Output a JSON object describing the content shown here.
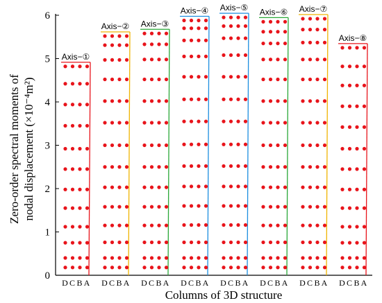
{
  "chart_data": {
    "type": "scatter",
    "xlabel": "Columns of  3D structure",
    "ylabel_line1": "Zero-order spectral moments of",
    "ylabel_line2": "nodal displacement (×10⁻⁴m²)",
    "ylim": [
      0,
      6
    ],
    "yticks": [
      "0",
      "1",
      "2",
      "3",
      "4",
      "5",
      "6"
    ],
    "category_letters": "DCBA",
    "marker_color": "#e8141b",
    "groups": [
      {
        "label": "Axis−①",
        "color": "#e8141b",
        "columns": [
          "D",
          "C",
          "B",
          "A"
        ],
        "values": [
          0.18,
          0.4,
          0.75,
          1.12,
          1.55,
          1.98,
          2.45,
          2.92,
          3.45,
          3.94,
          4.42,
          4.82
        ]
      },
      {
        "label": "Axis−②",
        "color": "#f0b400",
        "columns": [
          "D",
          "C",
          "B",
          "A"
        ],
        "values": [
          0.18,
          0.4,
          0.76,
          1.15,
          1.58,
          2.03,
          2.5,
          3.0,
          3.52,
          4.02,
          4.52,
          4.97,
          5.31,
          5.52
        ]
      },
      {
        "label": "Axis−③",
        "color": "#2aa838",
        "columns": [
          "D",
          "C",
          "B",
          "A"
        ],
        "values": [
          0.18,
          0.4,
          0.76,
          1.15,
          1.58,
          2.03,
          2.5,
          3.0,
          3.52,
          4.02,
          4.52,
          4.98,
          5.33,
          5.58
        ]
      },
      {
        "label": "Axis−④",
        "color": "#1c8ee0",
        "columns": [
          "D",
          "C",
          "B",
          "A"
        ],
        "values": [
          0.18,
          0.4,
          0.76,
          1.16,
          1.6,
          2.05,
          2.52,
          3.02,
          3.55,
          4.06,
          4.58,
          5.05,
          5.42,
          5.7,
          5.88
        ]
      },
      {
        "label": "Axis−⑤",
        "color": "#1c8ee0",
        "columns": [
          "D",
          "C",
          "B",
          "A"
        ],
        "values": [
          0.18,
          0.4,
          0.76,
          1.16,
          1.6,
          2.05,
          2.52,
          3.02,
          3.55,
          4.06,
          4.58,
          5.08,
          5.47,
          5.75,
          5.95
        ]
      },
      {
        "label": "Axis−⑥",
        "color": "#2aa838",
        "columns": [
          "D",
          "C",
          "B",
          "A"
        ],
        "values": [
          0.18,
          0.4,
          0.76,
          1.15,
          1.58,
          2.03,
          2.5,
          3.0,
          3.52,
          4.02,
          4.52,
          4.98,
          5.35,
          5.62,
          5.85
        ]
      },
      {
        "label": "Axis−⑦",
        "color": "#f0b400",
        "columns": [
          "D",
          "C",
          "B",
          "A"
        ],
        "values": [
          0.18,
          0.4,
          0.76,
          1.15,
          1.58,
          2.03,
          2.5,
          3.0,
          3.52,
          4.02,
          4.52,
          4.98,
          5.37,
          5.67,
          5.92
        ]
      },
      {
        "label": "Axis−⑧",
        "color": "#e8141b",
        "columns": [
          "D",
          "C",
          "B",
          "A"
        ],
        "values": [
          0.18,
          0.4,
          0.75,
          1.12,
          1.55,
          1.98,
          2.45,
          2.92,
          3.42,
          3.9,
          4.38,
          4.82,
          5.25
        ]
      }
    ]
  }
}
